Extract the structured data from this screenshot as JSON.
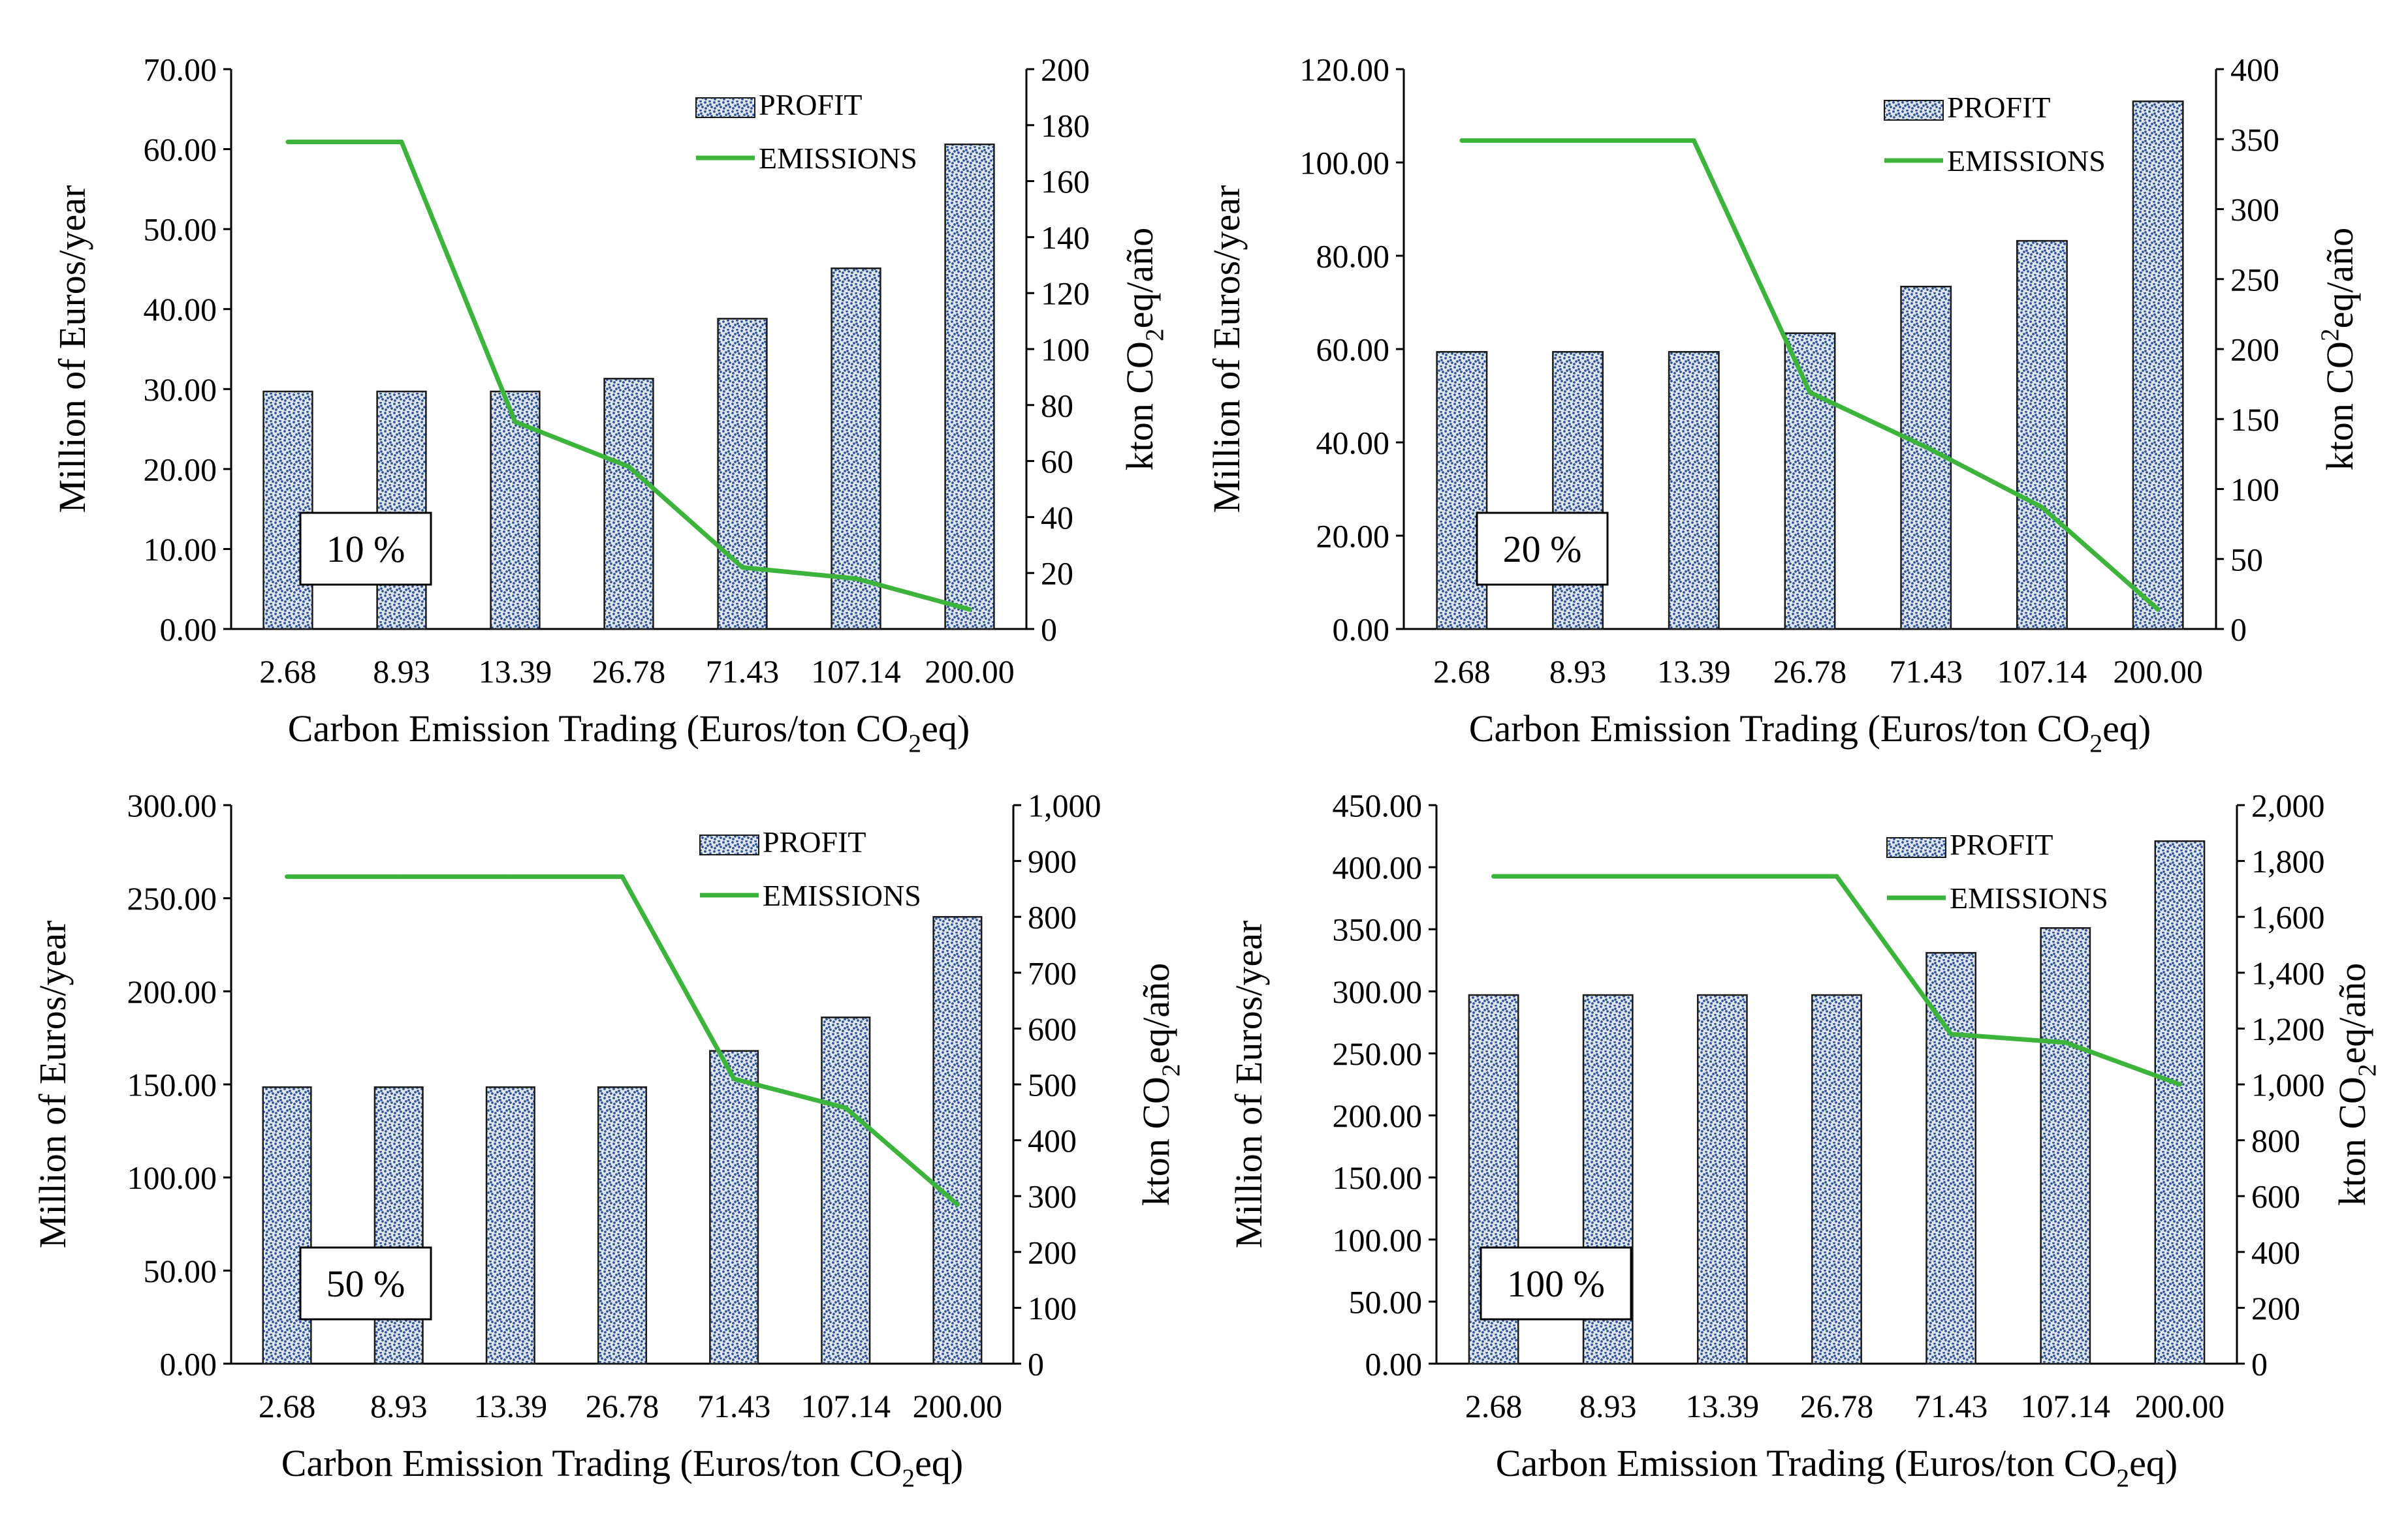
{
  "colors": {
    "bar_fill": "#dfe6ef",
    "bar_dots": "#2f5597",
    "bar_edge": "#1a1a1a",
    "line": "#3cb43c",
    "axis": "#000000"
  },
  "chart_data": [
    {
      "type": "bar+line",
      "panel_label": "10 %",
      "categories": [
        "2.68",
        "8.93",
        "13.39",
        "26.78",
        "71.43",
        "107.14",
        "200.00"
      ],
      "series": [
        {
          "name": "PROFIT",
          "type": "bar",
          "axis": "left",
          "values": [
            29.7,
            29.7,
            29.7,
            31.3,
            38.8,
            45.1,
            60.6
          ]
        },
        {
          "name": "EMISSIONS",
          "type": "line",
          "axis": "right",
          "values": [
            174,
            174,
            74,
            58,
            22,
            18,
            7
          ]
        }
      ],
      "xlabel": "Carbon Emission Trading (Euros/ton CO₂eq)",
      "ylabel_left": "Million of Euros/year",
      "ylabel_right": "kton CO₂eq/año",
      "ylim_left": [
        0,
        70
      ],
      "ylim_right": [
        0,
        200
      ],
      "yticks_left": [
        "0.00",
        "10.00",
        "20.00",
        "30.00",
        "40.00",
        "50.00",
        "60.00",
        "70.00"
      ],
      "yticks_right": [
        "0",
        "20",
        "40",
        "60",
        "80",
        "100",
        "120",
        "140",
        "160",
        "180",
        "200"
      ],
      "legend": [
        "PROFIT",
        "EMISSIONS"
      ],
      "legend_position": "top-right"
    },
    {
      "type": "bar+line",
      "panel_label": "20 %",
      "categories": [
        "2.68",
        "8.93",
        "13.39",
        "26.78",
        "71.43",
        "107.14",
        "200.00"
      ],
      "series": [
        {
          "name": "PROFIT",
          "type": "bar",
          "axis": "left",
          "values": [
            59.4,
            59.4,
            59.4,
            63.4,
            73.4,
            83.2,
            113.1
          ]
        },
        {
          "name": "EMISSIONS",
          "type": "line",
          "axis": "right",
          "values": [
            349,
            349,
            349,
            169,
            130,
            87,
            14
          ]
        }
      ],
      "xlabel": "Carbon Emission Trading (Euros/ton CO₂eq)",
      "ylabel_left": "Million of Euros/year",
      "ylabel_right": "kton CO²eq/año",
      "ylim_left": [
        0,
        120
      ],
      "ylim_right": [
        0,
        400
      ],
      "yticks_left": [
        "0.00",
        "20.00",
        "40.00",
        "60.00",
        "80.00",
        "100.00",
        "120.00"
      ],
      "yticks_right": [
        "0",
        "50",
        "100",
        "150",
        "200",
        "250",
        "300",
        "350",
        "400"
      ],
      "legend": [
        "PROFIT",
        "EMISSIONS"
      ],
      "legend_position": "top-right"
    },
    {
      "type": "bar+line",
      "panel_label": "50 %",
      "categories": [
        "2.68",
        "8.93",
        "13.39",
        "26.78",
        "71.43",
        "107.14",
        "200.00"
      ],
      "series": [
        {
          "name": "PROFIT",
          "type": "bar",
          "axis": "left",
          "values": [
            148.5,
            148.5,
            148.5,
            148.5,
            168,
            186,
            240
          ]
        },
        {
          "name": "EMISSIONS",
          "type": "line",
          "axis": "right",
          "values": [
            872,
            872,
            872,
            872,
            510,
            458,
            285
          ]
        }
      ],
      "xlabel": "Carbon Emission Trading (Euros/ton CO₂eq)",
      "ylabel_left": "Million of Euros/year",
      "ylabel_right": "kton CO₂eq/año",
      "ylim_left": [
        0,
        300
      ],
      "ylim_right": [
        0,
        1000
      ],
      "yticks_left": [
        "0.00",
        "50.00",
        "100.00",
        "150.00",
        "200.00",
        "250.00",
        "300.00"
      ],
      "yticks_right": [
        "0",
        "100",
        "200",
        "300",
        "400",
        "500",
        "600",
        "700",
        "800",
        "900",
        "1,000"
      ],
      "legend": [
        "PROFIT",
        "EMISSIONS"
      ],
      "legend_position": "top-right"
    },
    {
      "type": "bar+line",
      "panel_label": "100 %",
      "categories": [
        "2.68",
        "8.93",
        "13.39",
        "26.78",
        "71.43",
        "107.14",
        "200.00"
      ],
      "series": [
        {
          "name": "PROFIT",
          "type": "bar",
          "axis": "left",
          "values": [
            297,
            297,
            297,
            297,
            331,
            351,
            421
          ]
        },
        {
          "name": "EMISSIONS",
          "type": "line",
          "axis": "right",
          "values": [
            1745,
            1745,
            1745,
            1745,
            1180,
            1150,
            1000
          ]
        }
      ],
      "xlabel": "Carbon Emission Trading (Euros/ton CO₂eq)",
      "ylabel_left": "Million of Euros/year",
      "ylabel_right": "kton CO₂eq/año",
      "ylim_left": [
        0,
        450
      ],
      "ylim_right": [
        0,
        2000
      ],
      "yticks_left": [
        "0.00",
        "50.00",
        "100.00",
        "150.00",
        "200.00",
        "250.00",
        "300.00",
        "350.00",
        "400.00",
        "450.00"
      ],
      "yticks_right": [
        "0",
        "200",
        "400",
        "600",
        "800",
        "1,000",
        "1,200",
        "1,400",
        "1,600",
        "1,800",
        "2,000"
      ],
      "legend": [
        "PROFIT",
        "EMISSIONS"
      ],
      "legend_position": "top-right"
    }
  ]
}
